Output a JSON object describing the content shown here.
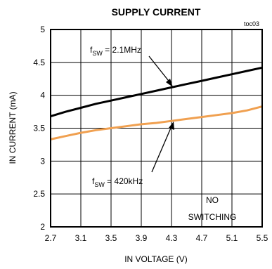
{
  "chart_data": {
    "type": "line",
    "title": "SUPPLY CURRENT",
    "tag": "toc03",
    "xlabel": "IN VOLTAGE (V)",
    "ylabel": "IN CURRENT (mA)",
    "xlim": [
      2.7,
      5.5
    ],
    "ylim": [
      2,
      5
    ],
    "xticks": [
      "2.7",
      "3.1",
      "3.5",
      "3.9",
      "4.3",
      "4.7",
      "5.1",
      "5.5"
    ],
    "yticks": [
      "2",
      "2.5",
      "3",
      "3.5",
      "4",
      "4.5",
      "5"
    ],
    "grid": true,
    "annotations": {
      "f21": {
        "prefix": "f",
        "sub": "SW",
        "suffix": " = 2.1MHz"
      },
      "f420": {
        "prefix": "f",
        "sub": "SW",
        "suffix": " = 420kHz"
      },
      "no_switching_line1": "NO",
      "no_switching_line2": "SWITCHING"
    },
    "series": [
      {
        "label_key": "f21",
        "color": "#000000",
        "x": [
          2.7,
          2.9,
          3.1,
          3.3,
          3.5,
          3.7,
          3.9,
          4.1,
          4.3,
          4.5,
          4.7,
          4.9,
          5.1,
          5.3,
          5.5
        ],
        "y": [
          3.68,
          3.75,
          3.81,
          3.87,
          3.92,
          3.97,
          4.02,
          4.07,
          4.12,
          4.17,
          4.22,
          4.27,
          4.32,
          4.37,
          4.42
        ]
      },
      {
        "label_key": "f420",
        "color": "#f0a050",
        "x": [
          2.7,
          2.9,
          3.1,
          3.3,
          3.5,
          3.7,
          3.9,
          4.1,
          4.3,
          4.5,
          4.7,
          4.9,
          5.1,
          5.3,
          5.5
        ],
        "y": [
          3.33,
          3.38,
          3.43,
          3.47,
          3.5,
          3.53,
          3.56,
          3.58,
          3.61,
          3.64,
          3.67,
          3.7,
          3.73,
          3.77,
          3.83
        ]
      }
    ]
  }
}
